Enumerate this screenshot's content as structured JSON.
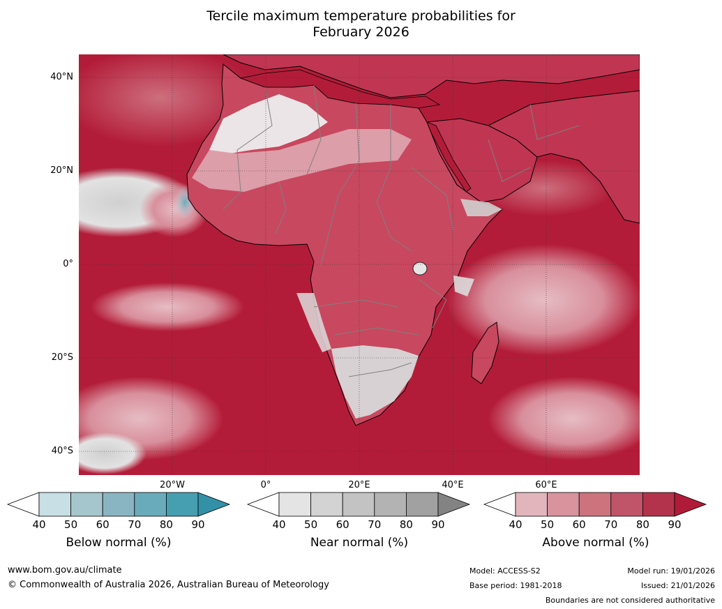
{
  "title": {
    "line1": "Tercile maximum temperature probabilities for",
    "line2": "February 2026"
  },
  "map": {
    "region": "Africa",
    "lat_labels": [
      "40°N",
      "20°N",
      "0°",
      "20°S",
      "40°S"
    ],
    "lon_labels": [
      "20°W",
      "0°",
      "20°E",
      "40°E",
      "60°E"
    ],
    "colors": {
      "ocean_dominant": "#b31c38",
      "coastline": "#000000",
      "borders": "#808080",
      "gridlines": "#333333"
    }
  },
  "colorbars": [
    {
      "name": "below",
      "label": "Below normal (%)",
      "ticks": [
        "40",
        "50",
        "60",
        "70",
        "80",
        "90"
      ],
      "colors": [
        "#ffffff",
        "#c7dfe5",
        "#a6c6cd",
        "#88b5c1",
        "#6aabbb",
        "#459fb0",
        "#3291a6"
      ]
    },
    {
      "name": "near",
      "label": "Near normal (%)",
      "ticks": [
        "40",
        "50",
        "60",
        "70",
        "80",
        "90"
      ],
      "colors": [
        "#ffffff",
        "#e4e4e4",
        "#d3d3d3",
        "#c3c3c3",
        "#b3b3b3",
        "#a1a1a1",
        "#838383"
      ]
    },
    {
      "name": "above",
      "label": "Above normal (%)",
      "ticks": [
        "40",
        "50",
        "60",
        "70",
        "80",
        "90"
      ],
      "colors": [
        "#ffffff",
        "#e2b5bc",
        "#d8939d",
        "#cc737e",
        "#c05469",
        "#b2334b",
        "#b01c38"
      ]
    }
  ],
  "footer": {
    "website": "www.bom.gov.au/climate",
    "copyright": "© Commonwealth of Australia 2026, Australian Bureau of Meteorology",
    "model": "Model: ACCESS-S2",
    "base_period": "Base period: 1981-2018",
    "model_run": "Model run: 19/01/2026",
    "issued": "Issued: 21/01/2026",
    "disclaimer": "Boundaries are not considered authoritative"
  }
}
